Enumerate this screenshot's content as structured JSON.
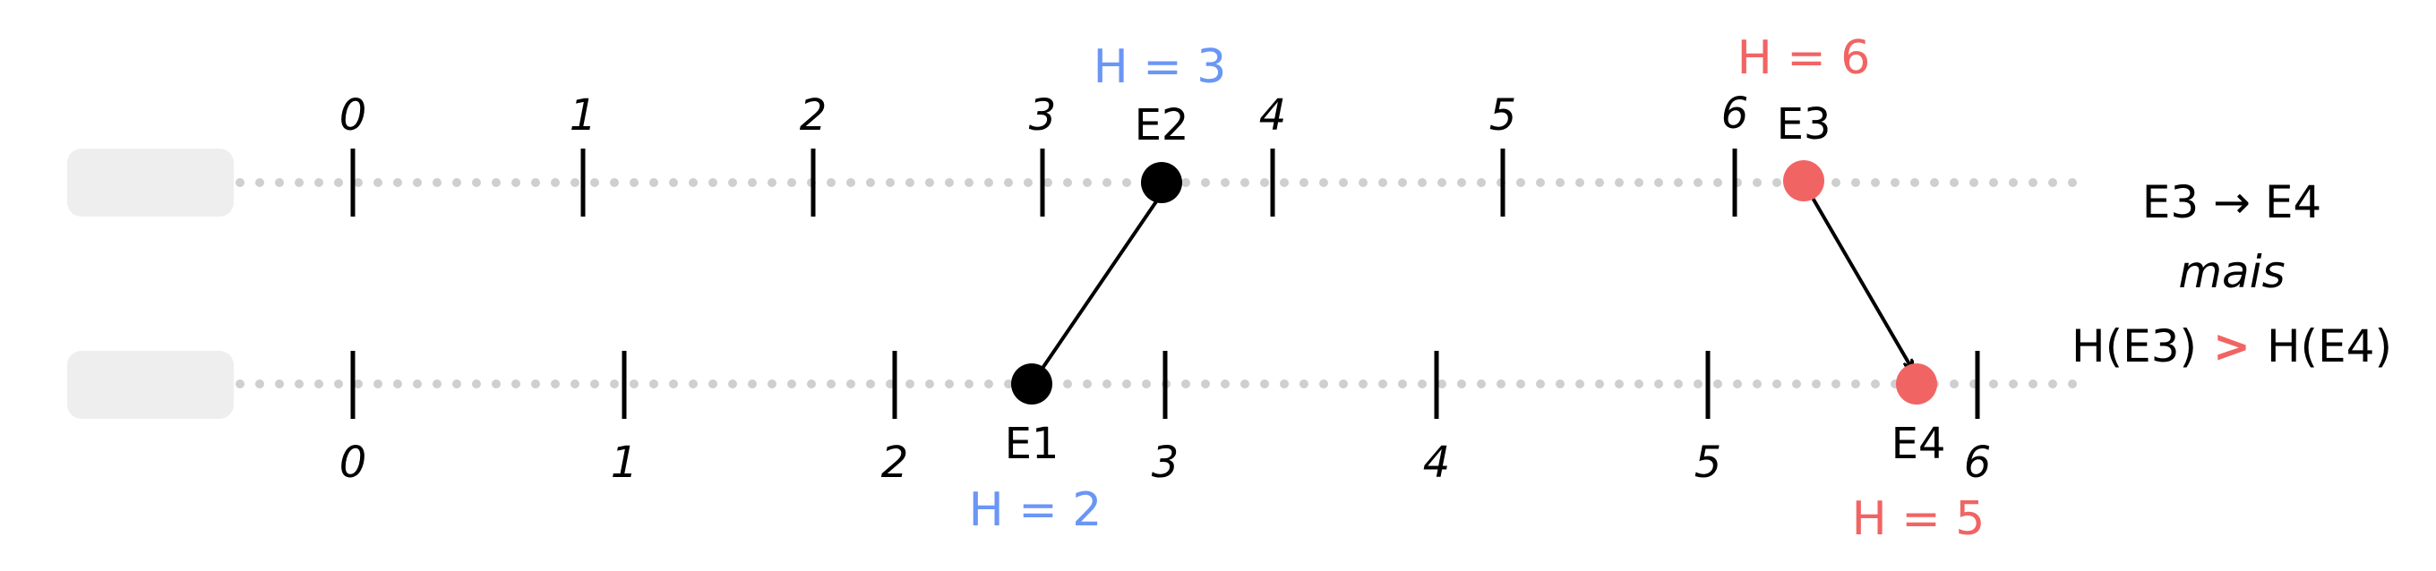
{
  "colors": {
    "blue": "#6a96f5",
    "red": "#f16464",
    "black": "#000000",
    "dots": "#cfcfcf",
    "process_box": "#eeeeee"
  },
  "top_line": {
    "ticks": [
      "0",
      "1",
      "2",
      "3",
      "4",
      "5",
      "6"
    ]
  },
  "bottom_line": {
    "ticks": [
      "0",
      "1",
      "2",
      "3",
      "4",
      "5",
      "6"
    ]
  },
  "events": {
    "e1": {
      "label": "E1",
      "h": "H = 2",
      "color": "black"
    },
    "e2": {
      "label": "E2",
      "h": "H = 3",
      "color": "black"
    },
    "e3": {
      "label": "E3",
      "h": "H = 6",
      "color": "red"
    },
    "e4": {
      "label": "E4",
      "h": "H = 5",
      "color": "red"
    }
  },
  "note": {
    "line1": "E3 → E4",
    "line2": "mais",
    "line3_left": "H(E3)",
    "line3_op": ">",
    "line3_right": "H(E4)"
  }
}
